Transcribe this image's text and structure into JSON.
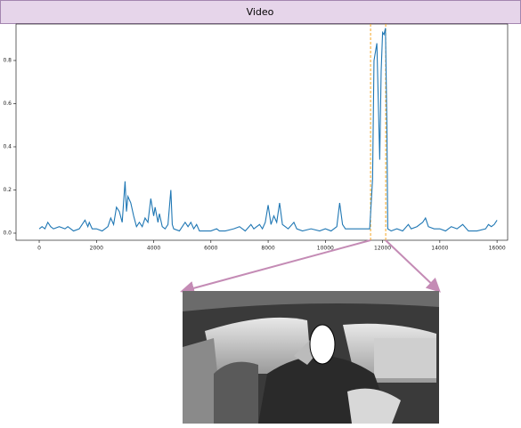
{
  "chart_data": {
    "type": "line",
    "title": "Video",
    "x": [
      0,
      100,
      200,
      300,
      400,
      500,
      700,
      900,
      1000,
      1200,
      1400,
      1600,
      1700,
      1750,
      1850,
      2000,
      2200,
      2400,
      2500,
      2600,
      2700,
      2800,
      2900,
      3000,
      3050,
      3100,
      3200,
      3300,
      3400,
      3500,
      3600,
      3700,
      3800,
      3900,
      4000,
      4050,
      4150,
      4200,
      4300,
      4400,
      4500,
      4600,
      4650,
      4700,
      4900,
      5000,
      5100,
      5200,
      5300,
      5400,
      5500,
      5600,
      5800,
      6000,
      6200,
      6300,
      6500,
      6800,
      7000,
      7200,
      7400,
      7500,
      7700,
      7800,
      7900,
      8000,
      8100,
      8200,
      8300,
      8400,
      8500,
      8700,
      8900,
      9000,
      9200,
      9500,
      9800,
      10000,
      10200,
      10400,
      10500,
      10600,
      10700,
      11000,
      11300,
      11550,
      11650,
      11700,
      11800,
      11900,
      11950,
      12000,
      12050,
      12100,
      12150,
      12180,
      12300,
      12500,
      12700,
      12900,
      13000,
      13200,
      13400,
      13500,
      13600,
      13800,
      14000,
      14200,
      14400,
      14600,
      14800,
      15000,
      15300,
      15600,
      15700,
      15800,
      15900,
      16000
    ],
    "series": [
      {
        "color": "#1f77b4",
        "values": [
          0.02,
          0.03,
          0.02,
          0.05,
          0.03,
          0.02,
          0.03,
          0.02,
          0.03,
          0.01,
          0.02,
          0.06,
          0.03,
          0.05,
          0.02,
          0.02,
          0.01,
          0.03,
          0.07,
          0.04,
          0.12,
          0.1,
          0.05,
          0.24,
          0.1,
          0.17,
          0.14,
          0.08,
          0.03,
          0.05,
          0.03,
          0.07,
          0.05,
          0.16,
          0.08,
          0.12,
          0.05,
          0.09,
          0.03,
          0.02,
          0.04,
          0.2,
          0.04,
          0.02,
          0.01,
          0.03,
          0.05,
          0.03,
          0.05,
          0.02,
          0.04,
          0.01,
          0.01,
          0.01,
          0.02,
          0.01,
          0.01,
          0.02,
          0.03,
          0.01,
          0.04,
          0.02,
          0.04,
          0.02,
          0.05,
          0.13,
          0.04,
          0.08,
          0.05,
          0.14,
          0.04,
          0.02,
          0.05,
          0.02,
          0.01,
          0.02,
          0.01,
          0.02,
          0.01,
          0.03,
          0.14,
          0.04,
          0.02,
          0.02,
          0.02,
          0.02,
          0.25,
          0.8,
          0.88,
          0.34,
          0.75,
          0.93,
          0.92,
          0.95,
          0.5,
          0.02,
          0.01,
          0.02,
          0.01,
          0.04,
          0.02,
          0.03,
          0.05,
          0.07,
          0.03,
          0.02,
          0.02,
          0.01,
          0.03,
          0.02,
          0.04,
          0.01,
          0.01,
          0.02,
          0.04,
          0.03,
          0.04,
          0.06
        ]
      }
    ],
    "xlim": [
      -810,
      16370
    ],
    "ylim": [
      -0.033,
      0.969
    ],
    "xticks": [
      0,
      2000,
      4000,
      6000,
      8000,
      10000,
      12000,
      14000,
      16000
    ],
    "yticks": [
      {
        "value": 0,
        "label": "0.0"
      },
      0.2,
      0.4,
      0.6,
      0.8
    ],
    "vlines": [
      11580,
      12109
    ],
    "vline_color": "#f5a623"
  }
}
